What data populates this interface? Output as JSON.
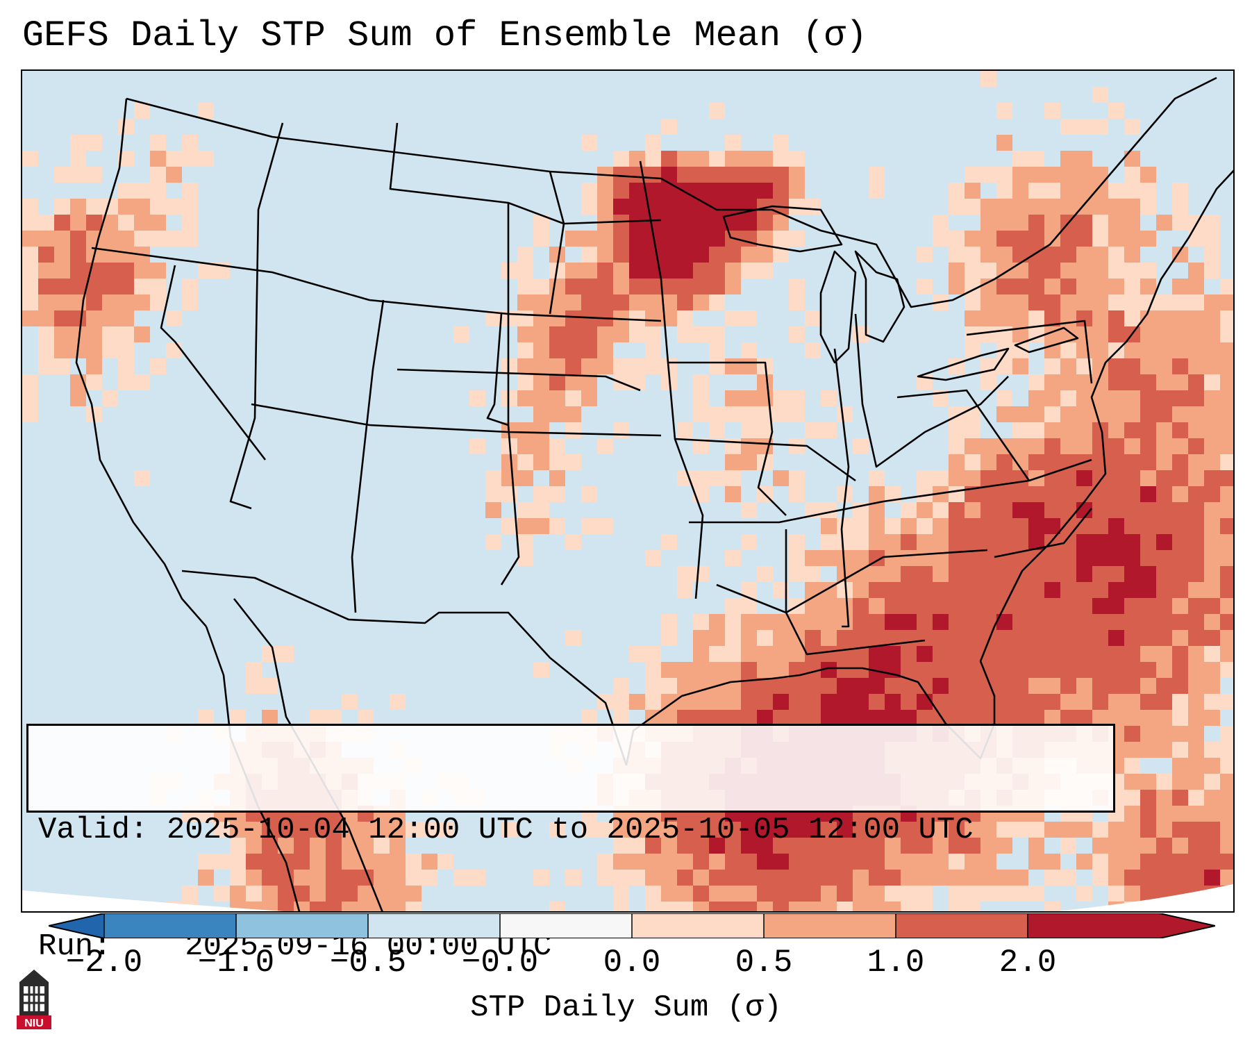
{
  "title": "GEFS Daily STP Sum of Ensemble Mean (σ)",
  "info": {
    "valid_label": "Valid:",
    "valid_text": "2025-10-04 12:00 UTC to 2025-10-05 12:00 UTC",
    "run_label": "Run:",
    "run_text": "2025-09-16 00:00 UTC"
  },
  "colorbar": {
    "label": "STP Daily Sum (σ)",
    "ticks": [
      "−2.0",
      "−1.0",
      "−0.5",
      "−0.0",
      "0.0",
      "0.5",
      "1.0",
      "2.0"
    ],
    "colors": [
      "#3a84c0",
      "#8ec2de",
      "#d1e5f0",
      "#f7f7f7",
      "#fddbc7",
      "#f4a582",
      "#d6604d",
      "#b2182b"
    ],
    "extend_low": "#2166ac",
    "extend_high": "#b2182b"
  },
  "map": {
    "background_color": "#d1e5f0",
    "outside_color": "#ffffff",
    "region": "CONUS"
  },
  "logo": {
    "text": "NIU"
  }
}
